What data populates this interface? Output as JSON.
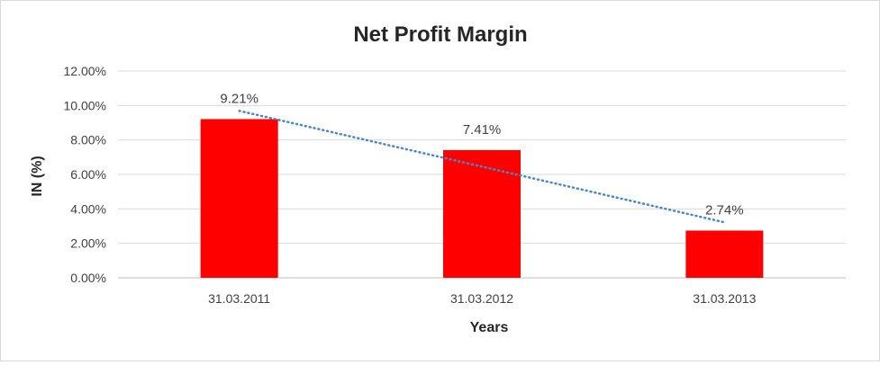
{
  "chart_data": {
    "type": "bar",
    "title": "Net Profit Margin",
    "xlabel": "Years",
    "ylabel": "IN (%)",
    "categories": [
      "31.03.2011",
      "31.03.2012",
      "31.03.2013"
    ],
    "values": [
      9.21,
      7.41,
      2.74
    ],
    "data_labels": [
      "9.21%",
      "7.41%",
      "2.74%"
    ],
    "yticks": [
      0,
      2,
      4,
      6,
      8,
      10,
      12
    ],
    "ytick_labels": [
      "0.00%",
      "2.00%",
      "4.00%",
      "6.00%",
      "8.00%",
      "10.00%",
      "12.00%"
    ],
    "ylim": [
      0,
      12
    ],
    "grid": true,
    "legend": "none",
    "bar_color": "#ff0000",
    "trendline": {
      "type": "linear",
      "style": "dotted",
      "color": "#4a86c6"
    }
  }
}
